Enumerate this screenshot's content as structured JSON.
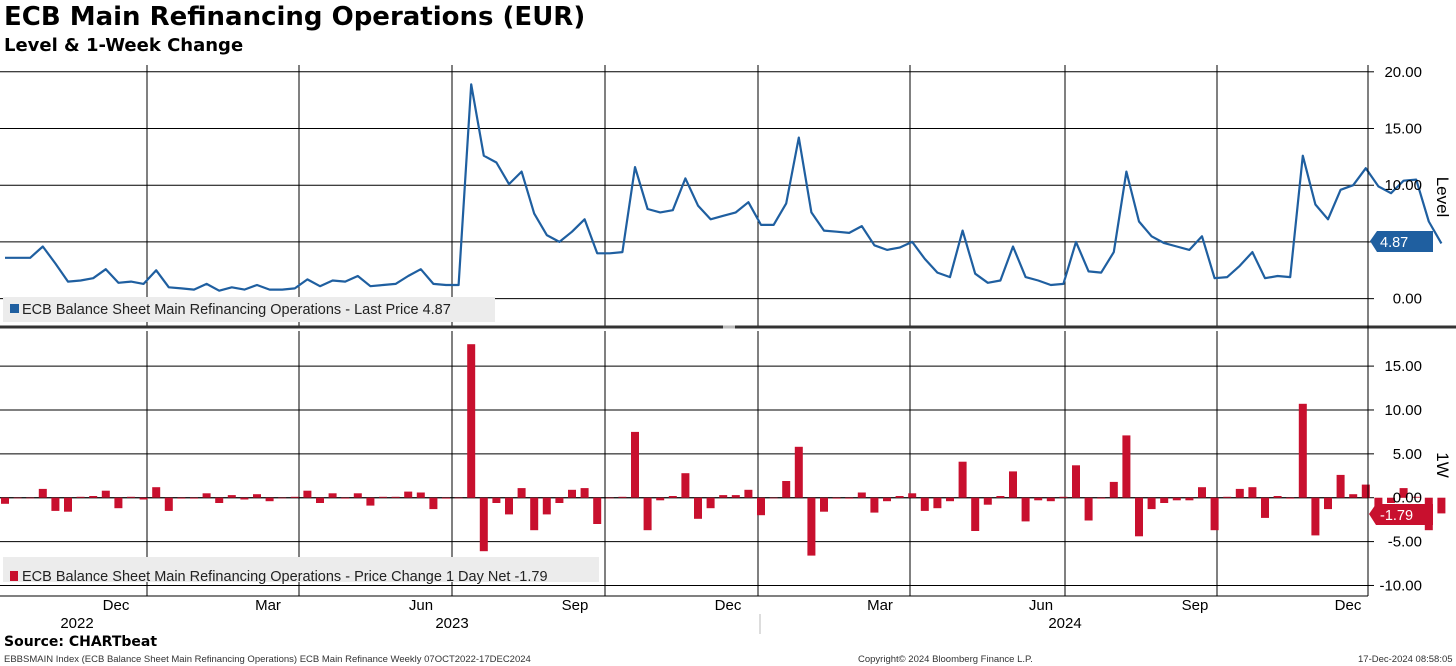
{
  "header": {
    "title": "ECB Main Refinancing Operations (EUR)",
    "subtitle": "Level & 1-Week Change"
  },
  "footer": {
    "source": "Source: CHARTbeat",
    "index_info": "EBBSMAIN Index (ECB Balance Sheet Main Refinancing Operations) ECB Main Refinance  Weekly 07OCT2022-17DEC2024",
    "copyright": "Copyright© 2024 Bloomberg Finance L.P.",
    "timestamp": "17-Dec-2024 08:58:05"
  },
  "colors": {
    "level": "#1f5fa0",
    "change": "#c8102e",
    "grid": "#000000"
  },
  "chart_data": [
    {
      "type": "line",
      "title": "Level",
      "ylabel": "Level",
      "ylim": [
        -2.5,
        20.6
      ],
      "yticks": [
        0,
        5,
        10,
        15,
        20
      ],
      "ytick_labels": [
        "0.00",
        "5.00",
        "10.00",
        "15.00",
        "20.00"
      ],
      "last_value_label": "4.87",
      "legend": "ECB Balance Sheet Main Refinancing Operations - Last Price 4.87",
      "series": [
        {
          "name": "ECB Balance Sheet Main Refinancing Operations",
          "values": [
            3.6,
            3.6,
            3.6,
            4.6,
            3.1,
            1.5,
            1.6,
            1.8,
            2.6,
            1.4,
            1.5,
            1.3,
            2.5,
            1.0,
            0.9,
            0.8,
            1.3,
            0.7,
            1.0,
            0.8,
            1.2,
            0.8,
            0.8,
            0.9,
            1.7,
            1.1,
            1.6,
            1.5,
            2.0,
            1.1,
            1.2,
            1.3,
            2.0,
            2.6,
            1.3,
            1.2,
            1.2,
            18.9,
            12.6,
            12.0,
            10.1,
            11.2,
            7.5,
            5.6,
            5.0,
            5.9,
            7.0,
            4.0,
            4.0,
            4.1,
            11.6,
            7.9,
            7.6,
            7.8,
            10.6,
            8.2,
            7.0,
            7.3,
            7.6,
            8.5,
            6.5,
            6.5,
            8.4,
            14.2,
            7.6,
            6.0,
            5.9,
            5.8,
            6.4,
            4.7,
            4.3,
            4.5,
            5.0,
            3.5,
            2.3,
            1.9,
            6.0,
            2.2,
            1.4,
            1.6,
            4.6,
            1.9,
            1.6,
            1.2,
            1.3,
            5.0,
            2.4,
            2.3,
            4.1,
            11.2,
            6.8,
            5.5,
            4.9,
            4.6,
            4.3,
            5.5,
            1.8,
            1.9,
            2.9,
            4.1,
            1.8,
            2.0,
            1.9,
            12.6,
            8.3,
            7.0,
            9.6,
            10.0,
            11.5,
            9.9,
            9.3,
            10.4,
            10.5,
            6.8,
            4.87
          ]
        }
      ]
    },
    {
      "type": "bar",
      "title": "1-Week Change",
      "ylabel": "1W",
      "ylim": [
        -11.2,
        19.0
      ],
      "yticks": [
        -10,
        -5,
        0,
        5,
        10,
        15
      ],
      "ytick_labels": [
        "-10.00",
        "-5.00",
        "0.00",
        "5.00",
        "10.00",
        "15.00"
      ],
      "last_value_label": "-1.79",
      "legend": "ECB Balance Sheet Main Refinancing Operations - Price Change 1 Day Net -1.79",
      "series": [
        {
          "name": "Price Change 1 Day Net",
          "values": [
            -0.7,
            0.0,
            0.0,
            1.0,
            -1.5,
            -1.6,
            0.1,
            0.2,
            0.8,
            -1.2,
            0.1,
            -0.2,
            1.2,
            -1.5,
            -0.1,
            -0.1,
            0.5,
            -0.6,
            0.3,
            -0.2,
            0.4,
            -0.4,
            0.0,
            0.1,
            0.8,
            -0.6,
            0.5,
            -0.1,
            0.5,
            -0.9,
            0.1,
            0.1,
            0.7,
            0.6,
            -1.3,
            -0.1,
            0.0,
            17.5,
            -6.1,
            -0.6,
            -1.9,
            1.1,
            -3.7,
            -1.9,
            -0.6,
            0.9,
            1.1,
            -3.0,
            0.0,
            0.1,
            7.5,
            -3.7,
            -0.3,
            0.2,
            2.8,
            -2.4,
            -1.2,
            0.3,
            0.3,
            0.9,
            -2.0,
            0.0,
            1.9,
            5.8,
            -6.6,
            -1.6,
            -0.1,
            -0.1,
            0.6,
            -1.7,
            -0.4,
            0.2,
            0.5,
            -1.5,
            -1.2,
            -0.4,
            4.1,
            -3.8,
            -0.8,
            0.2,
            3.0,
            -2.7,
            -0.3,
            -0.4,
            0.1,
            3.7,
            -2.6,
            -0.1,
            1.8,
            7.1,
            -4.4,
            -1.3,
            -0.6,
            -0.3,
            -0.3,
            1.2,
            -3.7,
            0.1,
            1.0,
            1.2,
            -2.3,
            0.2,
            -0.1,
            10.7,
            -4.3,
            -1.3,
            2.6,
            0.4,
            1.5,
            -1.6,
            -0.6,
            1.1,
            0.1,
            -3.7,
            -1.79
          ]
        }
      ]
    }
  ],
  "x_axis": {
    "month_labels": [
      "Dec",
      "Mar",
      "Jun",
      "Sep",
      "Dec",
      "Mar",
      "Jun",
      "Sep",
      "Dec"
    ],
    "year_labels": [
      "2022",
      "2023",
      "2024"
    ]
  }
}
